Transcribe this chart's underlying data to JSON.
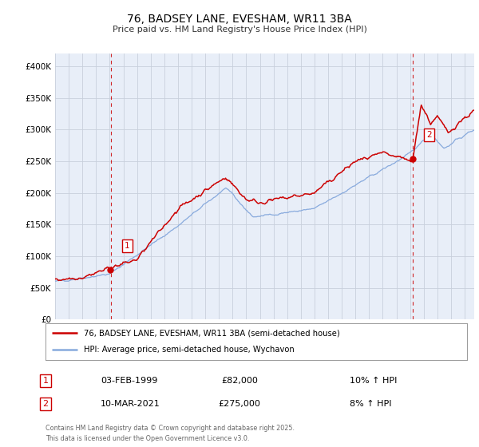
{
  "title": "76, BADSEY LANE, EVESHAM, WR11 3BA",
  "subtitle": "Price paid vs. HM Land Registry's House Price Index (HPI)",
  "legend_line1": "76, BADSEY LANE, EVESHAM, WR11 3BA (semi-detached house)",
  "legend_line2": "HPI: Average price, semi-detached house, Wychavon",
  "footer": "Contains HM Land Registry data © Crown copyright and database right 2025.\nThis data is licensed under the Open Government Licence v3.0.",
  "price_color": "#cc0000",
  "hpi_color": "#88aadd",
  "vline_color": "#cc0000",
  "annotation1": {
    "label": "1",
    "date": "03-FEB-1999",
    "price": "£82,000",
    "hpi": "10% ↑ HPI"
  },
  "annotation2": {
    "label": "2",
    "date": "10-MAR-2021",
    "price": "£275,000",
    "hpi": "8% ↑ HPI"
  },
  "ylim": [
    0,
    420000
  ],
  "yticks": [
    0,
    50000,
    100000,
    150000,
    200000,
    250000,
    300000,
    350000,
    400000
  ],
  "ytick_labels": [
    "£0",
    "£50K",
    "£100K",
    "£150K",
    "£200K",
    "£250K",
    "£300K",
    "£350K",
    "£400K"
  ],
  "xstart": 1995.0,
  "xend": 2025.7,
  "background_color": "#e8eef8",
  "grid_color": "#c8d0dc"
}
